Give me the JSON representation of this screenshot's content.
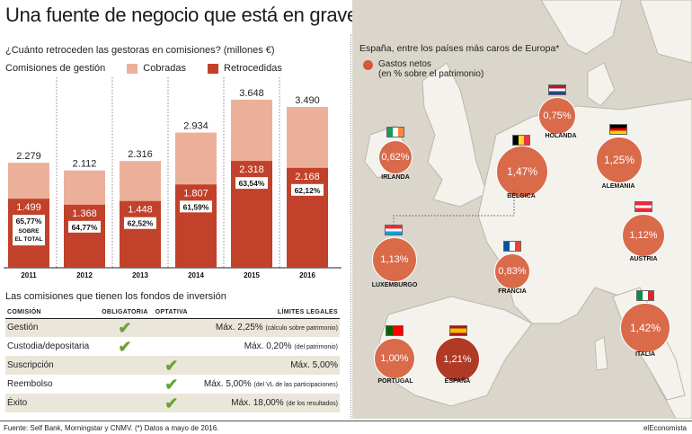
{
  "title": "Una fuente de negocio que está en grave peligro",
  "left": {
    "subtitle": "¿Cuánto retroceden las gestoras en comisiones? (millones €)",
    "legend_title": "Comisiones de gestión",
    "legend_cobradas": "Cobradas",
    "legend_retrocedidas": "Retrocedidas"
  },
  "colors": {
    "cobradas": "#ecb09a",
    "retrocedidas": "#c2412a",
    "map_bubble": "#d96a4a",
    "map_bubble_dark": "#b13a25",
    "check": "#6aa33a"
  },
  "chart_data": {
    "type": "bar",
    "categories": [
      "2011",
      "2012",
      "2013",
      "2014",
      "2015",
      "2016"
    ],
    "series": [
      {
        "name": "Cobradas",
        "values": [
          2279,
          2112,
          2316,
          2934,
          3648,
          3490
        ],
        "labels": [
          "2.279",
          "2.112",
          "2.316",
          "2.934",
          "3.648",
          "3.490"
        ]
      },
      {
        "name": "Retrocedidas",
        "values": [
          1499,
          1368,
          1448,
          1807,
          2318,
          2168
        ],
        "labels": [
          "1.499",
          "1.368",
          "1.448",
          "1.807",
          "2.318",
          "2.168"
        ]
      }
    ],
    "share_labels": [
      "65,77%",
      "64,77%",
      "62,52%",
      "61,59%",
      "63,54%",
      "62,12%"
    ],
    "share_note": [
      "SOBRE",
      "EL TOTAL"
    ],
    "ylim": [
      0,
      3900
    ]
  },
  "table": {
    "title": "Las comisiones que tienen los fondos de inversión",
    "headers": [
      "COMISIÓN",
      "OBLIGATORIA",
      "OPTATIVA",
      "LÍMITES LEGALES"
    ],
    "rows": [
      {
        "name": "Gestión",
        "obligatoria": "✔",
        "optativa": "",
        "limit": "Máx. 2,25%",
        "note": "(cálculo sobre patrimonio)"
      },
      {
        "name": "Custodia/depositaria",
        "obligatoria": "✔",
        "optativa": "",
        "limit": "Máx. 0,20%",
        "note": "(del patrimonio)"
      },
      {
        "name": "Suscripción",
        "obligatoria": "",
        "optativa": "✔",
        "limit": "Máx. 5,00%",
        "note": ""
      },
      {
        "name": "Reembolso",
        "obligatoria": "",
        "optativa": "✔",
        "limit": "Máx. 5,00%",
        "note": "(del VL de las participaciones)"
      },
      {
        "name": "Éxito",
        "obligatoria": "",
        "optativa": "✔",
        "limit": "Máx. 18,00%",
        "note": "(de los resultados)"
      }
    ]
  },
  "map": {
    "title": "España, entre los países más caros de Europa*",
    "legend_l1": "Gastos netos",
    "legend_l2": "(en % sobre el patrimonio)",
    "countries": [
      {
        "name": "HOLANDA",
        "value": "0,75%"
      },
      {
        "name": "IRLANDA",
        "value": "0,62%"
      },
      {
        "name": "BÉLGICA",
        "value": "1,47%"
      },
      {
        "name": "ALEMANIA",
        "value": "1,25%"
      },
      {
        "name": "LUXEMBURGO",
        "value": "1,13%"
      },
      {
        "name": "FRANCIA",
        "value": "0,83%"
      },
      {
        "name": "AUSTRIA",
        "value": "1,12%"
      },
      {
        "name": "ITALIA",
        "value": "1,42%"
      },
      {
        "name": "PORTUGAL",
        "value": "1,00%"
      },
      {
        "name": "ESPAÑA",
        "value": "1,21%"
      }
    ]
  },
  "footer": {
    "source": "Fuente: Self Bank, Morningstar y CNMV. (*) Datos a mayo de 2016.",
    "brand": "elEconomista"
  }
}
